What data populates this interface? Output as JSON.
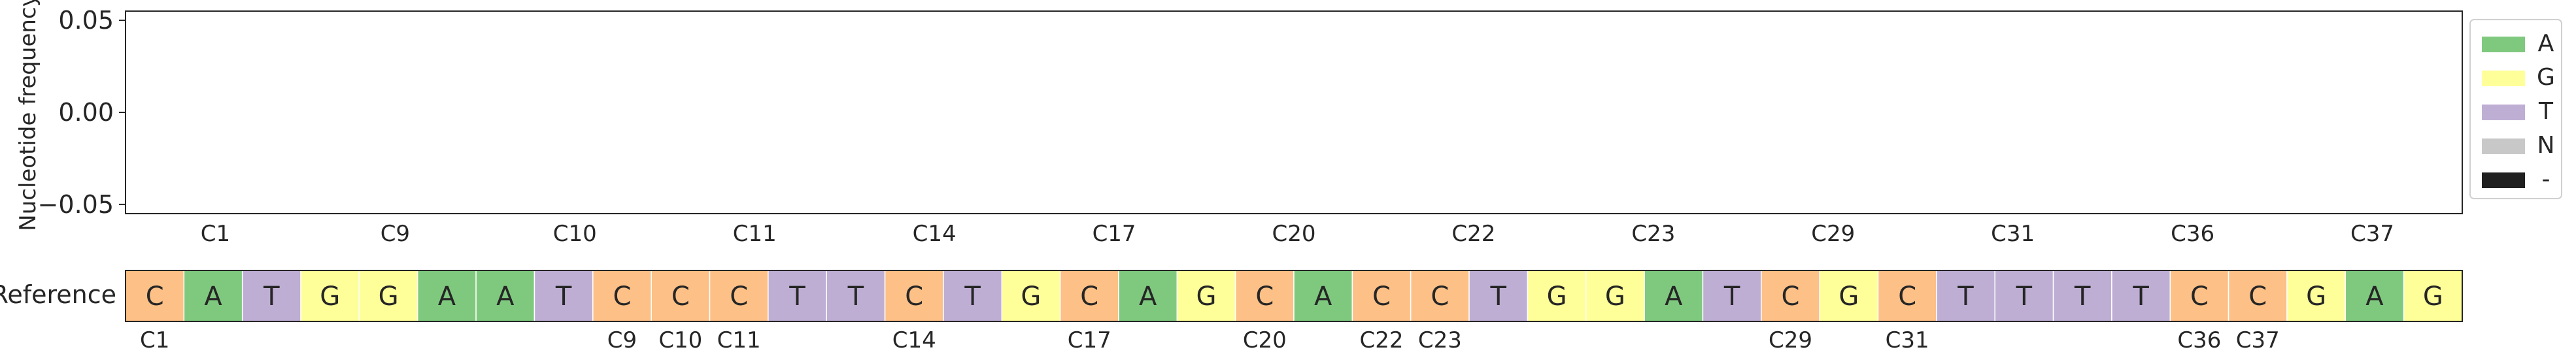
{
  "chart_data": {
    "type": "bar",
    "ylabel": "Nucleotide frequency",
    "yticks": [
      "0.05",
      "0.00",
      "−0.05"
    ],
    "ytick_values": [
      0.05,
      0.0,
      -0.05
    ],
    "ylim": [
      -0.055,
      0.055
    ],
    "grid": false,
    "legend_position": "right",
    "legend": [
      {
        "label": "A",
        "color": "#7fc97f"
      },
      {
        "label": "G",
        "color": "#ffff99"
      },
      {
        "label": "T",
        "color": "#beaed4"
      },
      {
        "label": "N",
        "color": "#c8c8c8"
      },
      {
        "label": "-",
        "color": "#202020"
      }
    ],
    "top_tick_labels": [
      "C1",
      "C9",
      "C10",
      "C11",
      "C14",
      "C17",
      "C20",
      "C22",
      "C23",
      "C29",
      "C31",
      "C36",
      "C37"
    ],
    "series": [
      {
        "name": "A",
        "values": []
      },
      {
        "name": "G",
        "values": []
      },
      {
        "name": "T",
        "values": []
      },
      {
        "name": "N",
        "values": []
      },
      {
        "name": "-",
        "values": []
      }
    ],
    "reference": {
      "label": "Reference",
      "sequence": [
        "C",
        "A",
        "T",
        "G",
        "G",
        "A",
        "A",
        "T",
        "C",
        "C",
        "C",
        "T",
        "T",
        "C",
        "T",
        "G",
        "C",
        "A",
        "G",
        "C",
        "A",
        "C",
        "C",
        "T",
        "G",
        "G",
        "A",
        "T",
        "C",
        "G",
        "C",
        "T",
        "T",
        "T",
        "T",
        "C",
        "C",
        "G",
        "A",
        "G"
      ],
      "colors": {
        "A": "#7fc97f",
        "G": "#ffff99",
        "T": "#beaed4",
        "C": "#fdc086"
      },
      "tick_labels": [
        {
          "index": 0,
          "label": "C1"
        },
        {
          "index": 8,
          "label": "C9"
        },
        {
          "index": 9,
          "label": "C10"
        },
        {
          "index": 10,
          "label": "C11"
        },
        {
          "index": 13,
          "label": "C14"
        },
        {
          "index": 16,
          "label": "C17"
        },
        {
          "index": 19,
          "label": "C20"
        },
        {
          "index": 21,
          "label": "C22"
        },
        {
          "index": 22,
          "label": "C23"
        },
        {
          "index": 28,
          "label": "C29"
        },
        {
          "index": 30,
          "label": "C31"
        },
        {
          "index": 35,
          "label": "C36"
        },
        {
          "index": 36,
          "label": "C37"
        }
      ]
    }
  }
}
